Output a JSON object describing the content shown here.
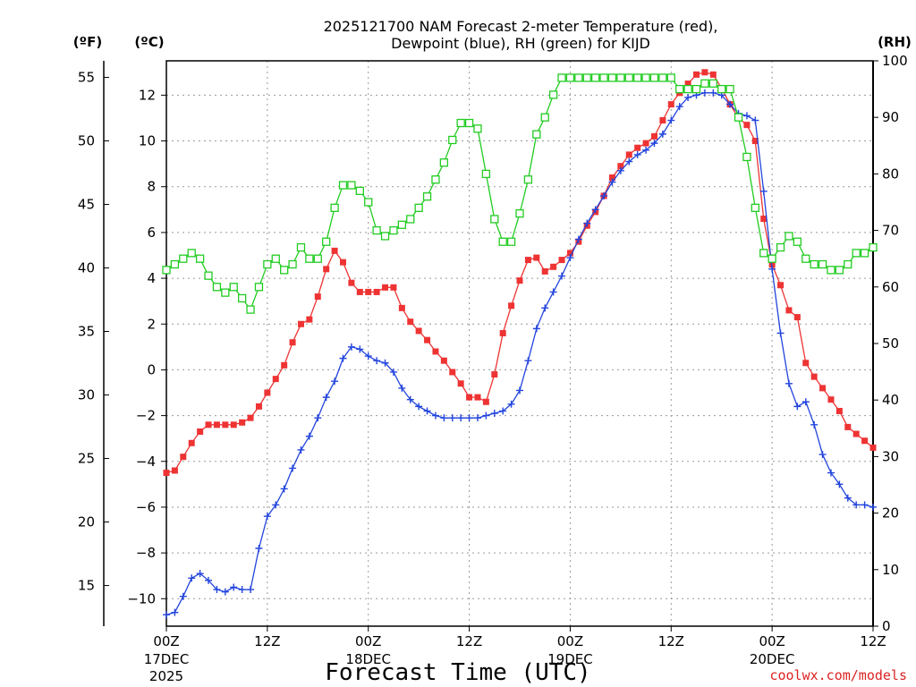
{
  "chart_data": {
    "type": "line",
    "title_line1": "2025121700 NAM Forecast 2-meter Temperature (red),",
    "title_line2": "Dewpoint (blue), RH (green) for KIJD",
    "units": {
      "f": "(ºF)",
      "c": "(ºC)",
      "rh": "(RH)"
    },
    "xlabel": "Forecast Time (UTC)",
    "credit": "coolwx.com/models",
    "colors": {
      "temperature": "#ee3333",
      "dewpoint": "#2244dd",
      "rh": "#22cc22"
    },
    "x_range_hours": [
      0,
      84
    ],
    "ylim_c": [
      -11.2,
      13.5
    ],
    "ylim_rh": [
      0,
      100
    ],
    "ylim_f": [
      11.8,
      56.3
    ],
    "x_ticks": [
      {
        "hour": 0,
        "label": "00Z",
        "date": "17DEC",
        "year": "2025"
      },
      {
        "hour": 12,
        "label": "12Z",
        "date": "",
        "year": ""
      },
      {
        "hour": 24,
        "label": "00Z",
        "date": "18DEC",
        "year": ""
      },
      {
        "hour": 36,
        "label": "12Z",
        "date": "",
        "year": ""
      },
      {
        "hour": 48,
        "label": "00Z",
        "date": "19DEC",
        "year": ""
      },
      {
        "hour": 60,
        "label": "12Z",
        "date": "",
        "year": ""
      },
      {
        "hour": 72,
        "label": "00Z",
        "date": "20DEC",
        "year": ""
      },
      {
        "hour": 84,
        "label": "12Z",
        "date": "",
        "year": ""
      }
    ],
    "c_ticks": [
      -10,
      -8,
      -6,
      -4,
      -2,
      0,
      2,
      4,
      6,
      8,
      10,
      12
    ],
    "c_tick_labels": [
      "−10",
      "−8",
      "−6",
      "−4",
      "−2",
      "0",
      "2",
      "4",
      "6",
      "8",
      "10",
      "12"
    ],
    "f_ticks": [
      15,
      20,
      25,
      30,
      35,
      40,
      45,
      50,
      55
    ],
    "f_tick_labels": [
      "15",
      "20",
      "25",
      "30",
      "35",
      "40",
      "45",
      "50",
      "55"
    ],
    "rh_ticks": [
      0,
      10,
      20,
      30,
      40,
      50,
      60,
      70,
      80,
      90,
      100
    ],
    "rh_tick_labels": [
      "0",
      "10",
      "20",
      "30",
      "40",
      "50",
      "60",
      "70",
      "80",
      "90",
      "100"
    ],
    "hours": [
      0,
      1,
      2,
      3,
      4,
      5,
      6,
      7,
      8,
      9,
      10,
      11,
      12,
      13,
      14,
      15,
      16,
      17,
      18,
      19,
      20,
      21,
      22,
      23,
      24,
      25,
      26,
      27,
      28,
      29,
      30,
      31,
      32,
      33,
      34,
      35,
      36,
      37,
      38,
      39,
      40,
      41,
      42,
      43,
      44,
      45,
      46,
      47,
      48,
      49,
      50,
      51,
      52,
      53,
      54,
      55,
      56,
      57,
      58,
      59,
      60,
      61,
      62,
      63,
      64,
      65,
      66,
      67,
      68,
      69,
      70,
      71,
      72,
      73,
      74,
      75,
      76,
      77,
      78,
      79,
      80,
      81,
      82,
      83,
      84
    ],
    "series": [
      {
        "name": "Temperature (°C)",
        "marker": "filled-square",
        "values": [
          -4.5,
          -4.4,
          -3.8,
          -3.2,
          -2.7,
          -2.4,
          -2.4,
          -2.4,
          -2.4,
          -2.3,
          -2.1,
          -1.6,
          -1.0,
          -0.4,
          0.2,
          1.2,
          2.0,
          2.2,
          3.2,
          4.4,
          5.2,
          4.7,
          3.8,
          3.4,
          3.4,
          3.4,
          3.6,
          3.6,
          2.7,
          2.1,
          1.7,
          1.3,
          0.8,
          0.4,
          -0.1,
          -0.6,
          -1.2,
          -1.2,
          -1.4,
          -0.2,
          1.6,
          2.8,
          3.9,
          4.8,
          4.9,
          4.3,
          4.5,
          4.8,
          5.1,
          5.6,
          6.3,
          6.9,
          7.6,
          8.4,
          8.9,
          9.4,
          9.7,
          9.9,
          10.2,
          10.9,
          11.6,
          12.1,
          12.5,
          12.9,
          13.0,
          12.9,
          12.3,
          11.6,
          11.0,
          10.7,
          10.0,
          6.6,
          4.6,
          3.7,
          2.6,
          2.3,
          0.3,
          -0.3,
          -0.8,
          -1.3,
          -1.8,
          -2.5,
          -2.8,
          -3.1,
          -3.4
        ]
      },
      {
        "name": "Dewpoint (°C)",
        "marker": "plus",
        "values": [
          -10.7,
          -10.6,
          -9.9,
          -9.1,
          -8.9,
          -9.2,
          -9.6,
          -9.7,
          -9.5,
          -9.6,
          -9.6,
          -7.8,
          -6.4,
          -5.9,
          -5.2,
          -4.3,
          -3.5,
          -2.9,
          -2.1,
          -1.2,
          -0.5,
          0.5,
          1.0,
          0.9,
          0.6,
          0.4,
          0.3,
          -0.1,
          -0.8,
          -1.3,
          -1.6,
          -1.8,
          -2.0,
          -2.1,
          -2.1,
          -2.1,
          -2.1,
          -2.1,
          -2.0,
          -1.9,
          -1.8,
          -1.5,
          -0.9,
          0.4,
          1.8,
          2.7,
          3.4,
          4.1,
          4.9,
          5.7,
          6.4,
          7.0,
          7.6,
          8.2,
          8.7,
          9.1,
          9.4,
          9.6,
          9.9,
          10.3,
          10.9,
          11.5,
          11.9,
          12.0,
          12.1,
          12.1,
          12.0,
          11.6,
          11.2,
          11.1,
          10.9,
          7.8,
          4.4,
          1.6,
          -0.6,
          -1.6,
          -1.4,
          -2.4,
          -3.7,
          -4.5,
          -5.0,
          -5.6,
          -5.9,
          -5.9,
          -6.0
        ]
      },
      {
        "name": "RH (%)",
        "marker": "open-square",
        "values": [
          63,
          64,
          65,
          66,
          65,
          62,
          60,
          59,
          60,
          58,
          56,
          60,
          64,
          65,
          63,
          64,
          67,
          65,
          65,
          68,
          74,
          78,
          78,
          77,
          75,
          70,
          69,
          70,
          71,
          72,
          74,
          76,
          79,
          82,
          86,
          89,
          89,
          88,
          80,
          72,
          68,
          68,
          73,
          79,
          87,
          90,
          94,
          97,
          97,
          97,
          97,
          97,
          97,
          97,
          97,
          97,
          97,
          97,
          97,
          97,
          97,
          95,
          95,
          95,
          96,
          96,
          95,
          95,
          90,
          83,
          74,
          66,
          65,
          67,
          69,
          68,
          65,
          64,
          64,
          63,
          63,
          64,
          66,
          66,
          67
        ]
      }
    ]
  }
}
